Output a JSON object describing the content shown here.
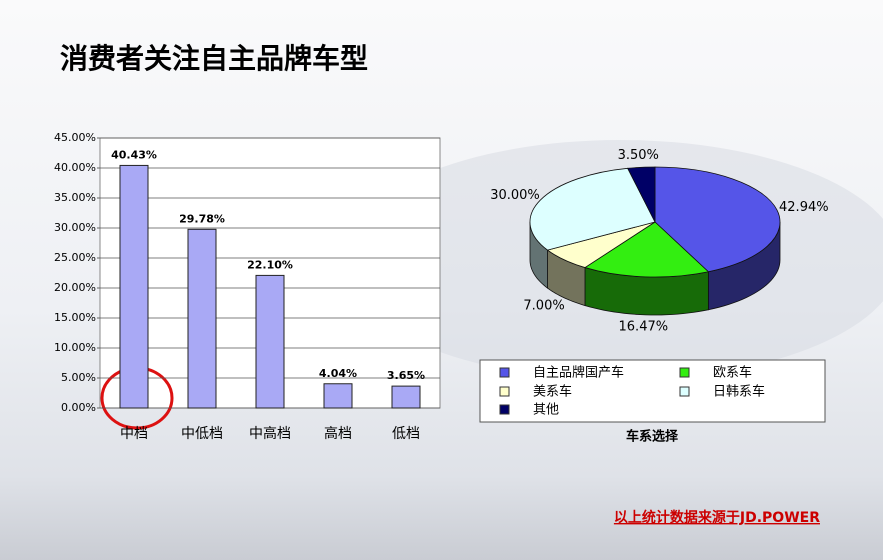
{
  "title": "消费者关注自主品牌车型",
  "source_note": "以上统计数据来源于JD.POWER",
  "chart_data": [
    {
      "type": "bar",
      "categories": [
        "中档",
        "中低档",
        "中高档",
        "高档",
        "低档"
      ],
      "values": [
        40.43,
        29.78,
        22.1,
        4.04,
        3.65
      ],
      "value_labels": [
        "40.43%",
        "29.78%",
        "22.10%",
        "4.04%",
        "3.65%"
      ],
      "color": "#a9a9f5",
      "ylim": [
        0,
        45
      ],
      "yticks": [
        {
          "value": 0,
          "label": "0.00%"
        },
        {
          "value": 5,
          "label": "5.00%"
        },
        {
          "value": 10,
          "label": "10.00%"
        },
        {
          "value": 15,
          "label": "15.00%"
        },
        {
          "value": 20,
          "label": "20.00%"
        },
        {
          "value": 25,
          "label": "25.00%"
        },
        {
          "value": 30,
          "label": "30.00%"
        },
        {
          "value": 35,
          "label": "35.00%"
        },
        {
          "value": 40,
          "label": "40.00%"
        },
        {
          "value": 45,
          "label": "45.00%"
        }
      ],
      "grid": true
    },
    {
      "type": "pie",
      "legend_title": "车系选择",
      "categories": [
        "自主品牌国产车",
        "欧系车",
        "美系车",
        "日韩系车",
        "其他"
      ],
      "values": [
        42.94,
        16.47,
        7.0,
        30.0,
        3.5
      ],
      "value_labels": [
        "42.94%",
        "16.47%",
        "7.00%",
        "30.00%",
        "3.50%"
      ],
      "colors": [
        "#5555e8",
        "#33ee11",
        "#ffffcc",
        "#ddffff",
        "#000066"
      ]
    }
  ]
}
